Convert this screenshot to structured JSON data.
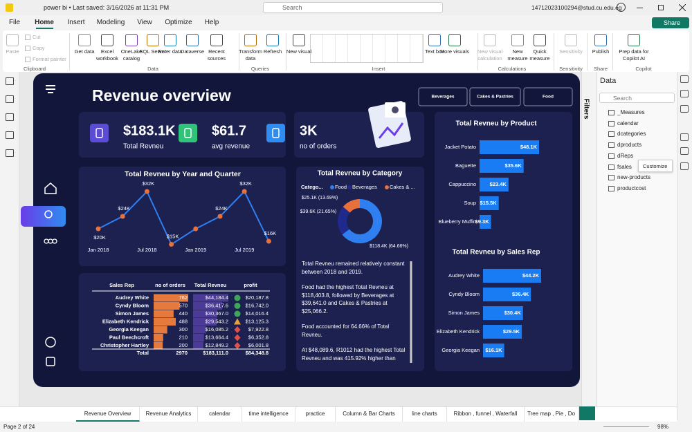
{
  "title_bar": {
    "file": "power bi • Last saved: 3/16/2026 at 11:31 PM",
    "search": "Search",
    "user": "14712023100294@stud.cu.edu.eg"
  },
  "menu": [
    "File",
    "Home",
    "Insert",
    "Modeling",
    "View",
    "Optimize",
    "Help"
  ],
  "share": "Share",
  "ribbon": [
    {
      "group": "Clipboard",
      "items": [
        {
          "label": "Paste",
          "disabled": true
        },
        {
          "label": "Cut",
          "disabled": true
        },
        {
          "label": "Copy",
          "disabled": true
        },
        {
          "label": "Format painter",
          "disabled": true
        }
      ]
    },
    {
      "group": "Data",
      "items": [
        {
          "label": "Get data"
        },
        {
          "label": "Excel workbook"
        },
        {
          "label": "OneLake catalog"
        },
        {
          "label": "SQL Server"
        },
        {
          "label": "Enter data"
        },
        {
          "label": "Dataverse"
        },
        {
          "label": "Recent sources"
        }
      ]
    },
    {
      "group": "Queries",
      "items": [
        {
          "label": "Transform data"
        },
        {
          "label": "Refresh"
        }
      ]
    },
    {
      "group": "Insert",
      "items": [
        {
          "label": "New visual"
        },
        {
          "label": "Text box"
        },
        {
          "label": "More visuals"
        }
      ]
    },
    {
      "group": "Calculations",
      "items": [
        {
          "label": "New visual calculation",
          "disabled": true
        },
        {
          "label": "New measure"
        },
        {
          "label": "Quick measure"
        }
      ]
    },
    {
      "group": "Sensitivity",
      "items": [
        {
          "label": "Sensitivity",
          "disabled": true
        }
      ]
    },
    {
      "group": "Share",
      "items": [
        {
          "label": "Publish"
        }
      ]
    },
    {
      "group": "Copilot",
      "items": [
        {
          "label": "Prep data for Copilot AI"
        }
      ]
    }
  ],
  "report": {
    "title": "Revenue overview",
    "slicer": [
      "Beverages",
      "Cakes & Pastries",
      "Food"
    ],
    "kpis": [
      {
        "value": "$183.1K",
        "label": "Total Revneu",
        "color": "#5b4bd6"
      },
      {
        "value": "$61.7",
        "label": "avg revenue",
        "color": "#2fc47a"
      },
      {
        "value": "3K",
        "label": "no of orders",
        "color": "#2f8cf0"
      }
    ],
    "line_chart": {
      "type": "line",
      "title": "Total Revneu by Year and Quarter",
      "categories": [
        "Jan 2018",
        null,
        "Jul 2018",
        null,
        "Jan 2019",
        null,
        "Jul 2019",
        null
      ],
      "values": [
        20000,
        24000,
        32000,
        15000,
        20000,
        24000,
        32000,
        16000
      ],
      "value_labels": [
        "$20K",
        "$24K",
        "$32K",
        "$15K",
        null,
        "$24K",
        "$32K",
        "$16K"
      ],
      "color": "#2f7ff0",
      "marker_color": "#e8703a"
    },
    "donut": {
      "type": "pie",
      "title": "Total Revneu by Category",
      "legend_title": "Catego...",
      "categories": [
        "Food",
        "Beverages",
        "Cakes & ..."
      ],
      "values": [
        118400,
        39600,
        25100
      ],
      "value_labels": [
        "$118.4K (64.66%)",
        "$39.6K (21.65%)",
        "$25.1K (13.69%)"
      ],
      "colors": [
        "#2f7ff0",
        "#1f2a8c",
        "#e8703a"
      ]
    },
    "narrative": [
      "Total Revneu remained relatively constant between 2018 and 2019.",
      "Food had the highest Total Revneu at $118,403.8, followed by Beverages at $39,641.0 and Cakes & Pastries at $25,066.2.",
      "Food accounted for 64.66% of Total Revneu.",
      "At $48,089.6, R1012 had the highest Total Revneu and was 415.92% higher than"
    ],
    "table": {
      "columns": [
        "Sales Rep",
        "no of orders",
        "Total Revneu",
        "profit"
      ],
      "rows": [
        [
          "Audrey White",
          "762",
          "$44,184.4",
          "$20,187.8"
        ],
        [
          "Cyndy Bloom",
          "570",
          "$36,417.6",
          "$16,742.0"
        ],
        [
          "Simon James",
          "440",
          "$30,367.0",
          "$14,016.4"
        ],
        [
          "Elizabeth Kendrick",
          "488",
          "$29,543.2",
          "$13,125.3"
        ],
        [
          "Georgia Keegan",
          "300",
          "$16,085.2",
          "$7,922.8"
        ],
        [
          "Paul Beechcroft",
          "210",
          "$13,664.4",
          "$6,352.8"
        ],
        [
          "Christopher Hartley",
          "200",
          "$12,849.2",
          "$6,001.8"
        ]
      ],
      "total": [
        "Total",
        "2970",
        "$183,111.0",
        "$84,348.8"
      ]
    },
    "product_bar": {
      "type": "bar",
      "title": "Total Revneu by Product",
      "categories": [
        "Jacket Potato",
        "Baguette",
        "Cappuccino",
        "Soup",
        "Blueberry Muffin"
      ],
      "values": [
        48100,
        35600,
        23400,
        15500,
        9300
      ],
      "value_labels": [
        "$48.1K",
        "$35.6K",
        "$23.4K",
        "$15.5K",
        "$9.3K"
      ],
      "color": "#1a7cf2"
    },
    "rep_bar": {
      "type": "bar",
      "title": "Total Revneu by Sales Rep",
      "categories": [
        "Audrey White",
        "Cyndy Bloom",
        "Simon James",
        "Elizabeth Kendrick",
        "Georgia Keegan"
      ],
      "values": [
        44200,
        36400,
        30400,
        29500,
        16100
      ],
      "value_labels": [
        "$44.2K",
        "$36.4K",
        "$30.4K",
        "$29.5K",
        "$16.1K"
      ],
      "color": "#1a7cf2"
    }
  },
  "filters": "Filters",
  "data_pane": {
    "title": "Data",
    "search": "Search",
    "fields": [
      "_Measures",
      "calendar",
      "dcategories",
      "dproducts",
      "dReps",
      "fsales",
      "new-products",
      "productcost"
    ],
    "tooltip": "Customize"
  },
  "tabs": [
    "Revenue Overview",
    "Revenue Analytics",
    "calendar",
    "time intelligence",
    "practice",
    "Column & Bar Charts",
    "line charts",
    "Ribbon , funnel , Waterfall",
    "Tree map , Pie , Do"
  ],
  "status": {
    "page": "Page 2 of 24",
    "zoom": "98%"
  }
}
